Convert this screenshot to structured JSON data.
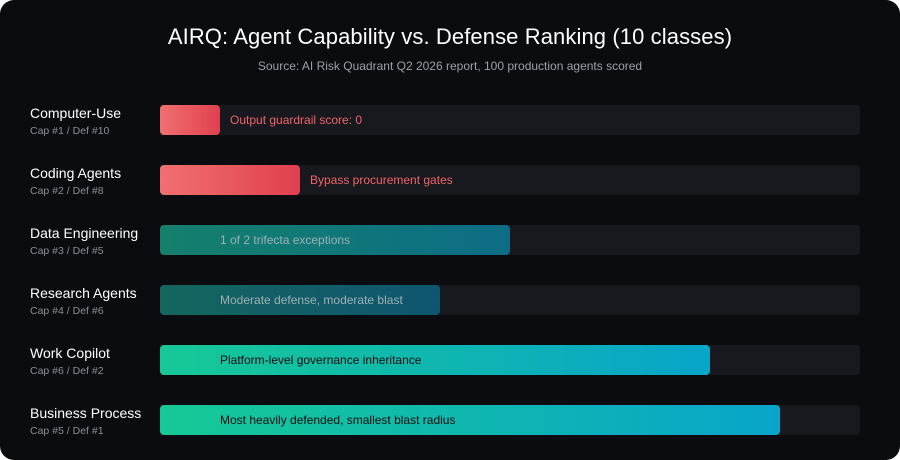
{
  "chart_data": {
    "type": "bar",
    "orientation": "horizontal",
    "title": "AIRQ: Agent Capability vs. Defense Ranking (10 classes)",
    "subtitle": "Source: AI Risk Quadrant Q2 2026 report, 100 production agents scored",
    "xlim": [
      0,
      100
    ],
    "grid": false,
    "categories": [
      "Computer-Use",
      "Coding Agents",
      "Data Engineering",
      "Research Agents",
      "Work Copilot",
      "Business Process"
    ],
    "rank_labels": [
      "Cap #1 / Def #10",
      "Cap #2 / Def #8",
      "Cap #3 / Def #5",
      "Cap #4 / Def #6",
      "Cap #6 / Def #2",
      "Cap #5 / Def #1"
    ],
    "values": [
      8.6,
      20,
      50,
      40,
      78.6,
      88.6
    ],
    "annotations": [
      "Output guardrail score: 0",
      "Bypass procurement gates",
      "1 of 2 trifecta exceptions",
      "Moderate defense, moderate blast",
      "Platform-level governance inheritance",
      "Most heavily defended, smallest blast radius"
    ],
    "bar_styles": [
      {
        "from": "#f07070",
        "to": "#e0404e",
        "text_color": "#f0636a",
        "text_position": "outside"
      },
      {
        "from": "#f07070",
        "to": "#e0404e",
        "text_color": "#f0636a",
        "text_position": "outside"
      },
      {
        "from": "#14806c",
        "to": "#0d6d86",
        "text_color": "#9fb0b4",
        "text_position": "inside"
      },
      {
        "from": "#14665e",
        "to": "#0f5570",
        "text_color": "#9fb0b4",
        "text_position": "inside"
      },
      {
        "from": "#16c996",
        "to": "#08a5c9",
        "text_color": "#0a0c10",
        "text_position": "inside"
      },
      {
        "from": "#16c996",
        "to": "#08a5c9",
        "text_color": "#0a0c10",
        "text_position": "inside"
      }
    ]
  },
  "colors": {
    "background": "#0b0c0f",
    "track": "#17191e",
    "title": "#ffffff",
    "subtitle": "#9aa0a8",
    "row_sub": "#8a8f98"
  }
}
